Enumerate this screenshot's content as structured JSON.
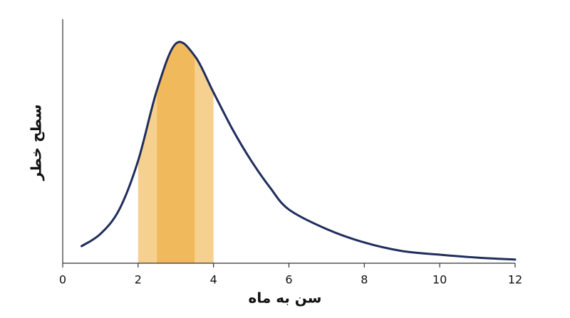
{
  "chart_data": {
    "type": "line",
    "xlabel": "سن به ماه",
    "ylabel": "سطح خطر",
    "x": [
      0.5,
      1,
      1.5,
      2,
      2.5,
      3,
      3.5,
      4,
      4.5,
      5,
      5.5,
      6,
      7,
      8,
      9,
      10,
      11,
      12
    ],
    "values": [
      7,
      12,
      22,
      42,
      71,
      90,
      85,
      70,
      55,
      42,
      31,
      22,
      14,
      8.5,
      5,
      3.5,
      2.3,
      1.5
    ],
    "color": "#1f2d5c",
    "bands": [
      {
        "range": [
          2,
          4
        ],
        "color": "#f6d08f"
      },
      {
        "range": [
          2.5,
          3.5
        ],
        "color": "#f0ba5c"
      }
    ],
    "xlim": [
      0,
      12
    ],
    "xticks": [
      0,
      2,
      4,
      6,
      8,
      10,
      12
    ],
    "ylim": [
      0,
      100
    ]
  }
}
